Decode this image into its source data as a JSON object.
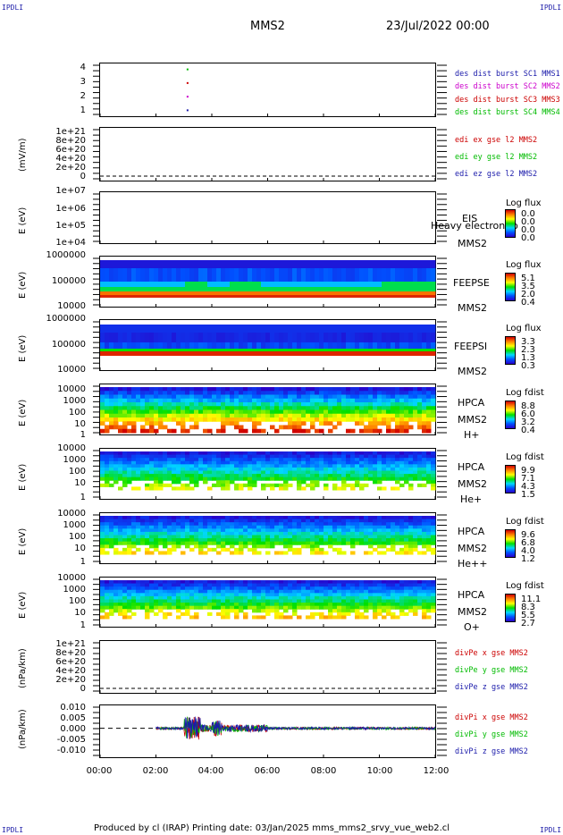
{
  "header": {
    "corner_left": "IPDLI",
    "corner_right": "IPDLI",
    "spacecraft": "MMS2",
    "datetime": "23/Jul/2022 00:00"
  },
  "footer": {
    "text": "Produced by cl (IRAP)   Printing date: 03/Jan/2025   mms_mms2_srvy_vue_web2.cl",
    "corner_left": "IPDLI",
    "corner_right": "IPDLI"
  },
  "xaxis": {
    "ticks": [
      "00:00",
      "02:00",
      "04:00",
      "06:00",
      "08:00",
      "10:00",
      "12:00"
    ],
    "range_hours": [
      0,
      12
    ]
  },
  "colors": {
    "blue": "#1a1aaa",
    "magenta": "#cc00cc",
    "red": "#cc0000",
    "green": "#00bb00"
  },
  "chart_data": [
    {
      "type": "scatter",
      "ylim": [
        0.5,
        4.5
      ],
      "yticks": [
        "4",
        "3",
        "2",
        "1"
      ],
      "series": [
        {
          "name": "des dist burst SC1 MMS1",
          "x": [
            3.1
          ],
          "y": [
            1
          ],
          "color": "#1a1aaa"
        },
        {
          "name": "des dist burst SC2 MMS2",
          "x": [
            3.1
          ],
          "y": [
            2
          ],
          "color": "#cc00cc"
        },
        {
          "name": "des dist burst SC3 MMS3",
          "x": [
            3.1
          ],
          "y": [
            3
          ],
          "color": "#cc0000"
        },
        {
          "name": "des dist burst SC4 MMS4",
          "x": [
            3.1
          ],
          "y": [
            4
          ],
          "color": "#00bb00"
        }
      ]
    },
    {
      "type": "line",
      "ylabel": "(mV/m)",
      "yticks": [
        "1e+21",
        "8e+20",
        "6e+20",
        "4e+20",
        "2e+20",
        "0"
      ],
      "series": [
        {
          "name": "edi ex gse l2 MMS2",
          "color": "#cc0000"
        },
        {
          "name": "edi ey gse l2 MMS2",
          "color": "#00bb00"
        },
        {
          "name": "edi ez gse l2 MMS2",
          "color": "#1a1aaa"
        }
      ]
    },
    {
      "type": "heatmap",
      "ylabel": "E (eV)",
      "yticks": [
        "1e+07",
        "1e+06",
        "1e+05",
        "1e+04"
      ],
      "labels": [
        "EIS",
        "Heavy electron to",
        "MMS2"
      ],
      "colorbar": {
        "title": "Log flux",
        "values": [
          "0.0",
          "0.0",
          "0.0",
          "0.0"
        ]
      }
    },
    {
      "type": "heatmap",
      "ylabel": "E (eV)",
      "yticks": [
        "1000000",
        "100000",
        "10000"
      ],
      "labels": [
        "FEEPSE",
        "MMS2"
      ],
      "colorbar": {
        "title": "Log flux",
        "values": [
          "5.1",
          "3.5",
          "2.0",
          "0.4"
        ]
      }
    },
    {
      "type": "heatmap",
      "ylabel": "E (eV)",
      "yticks": [
        "1000000",
        "100000",
        "10000"
      ],
      "labels": [
        "FEEPSI",
        "MMS2"
      ],
      "colorbar": {
        "title": "Log flux",
        "values": [
          "3.3",
          "2.3",
          "1.3",
          "0.3"
        ]
      }
    },
    {
      "type": "heatmap",
      "ylabel": "E (eV)",
      "yticks": [
        "10000",
        "1000",
        "100",
        "10",
        "1"
      ],
      "labels": [
        "HPCA",
        "MMS2",
        "H+"
      ],
      "colorbar": {
        "title": "Log fdist",
        "values": [
          "8.8",
          "6.0",
          "3.2",
          "0.4"
        ]
      }
    },
    {
      "type": "heatmap",
      "ylabel": "E (eV)",
      "yticks": [
        "10000",
        "1000",
        "100",
        "10",
        "1"
      ],
      "labels": [
        "HPCA",
        "MMS2",
        "He+"
      ],
      "colorbar": {
        "title": "Log fdist",
        "values": [
          "9.9",
          "7.1",
          "4.3",
          "1.5"
        ]
      }
    },
    {
      "type": "heatmap",
      "ylabel": "E (eV)",
      "yticks": [
        "10000",
        "1000",
        "100",
        "10",
        "1"
      ],
      "labels": [
        "HPCA",
        "MMS2",
        "He++"
      ],
      "colorbar": {
        "title": "Log fdist",
        "values": [
          "9.6",
          "6.8",
          "4.0",
          "1.2"
        ]
      }
    },
    {
      "type": "heatmap",
      "ylabel": "E (eV)",
      "yticks": [
        "10000",
        "1000",
        "100",
        "10",
        "1"
      ],
      "labels": [
        "HPCA",
        "MMS2",
        "O+"
      ],
      "colorbar": {
        "title": "Log fdist",
        "values": [
          "11.1",
          "8.3",
          "5.5",
          "2.7"
        ]
      }
    },
    {
      "type": "line",
      "ylabel": "(nPa/km)",
      "yticks": [
        "1e+21",
        "8e+20",
        "6e+20",
        "4e+20",
        "2e+20",
        "0"
      ],
      "series": [
        {
          "name": "divPe x gse MMS2",
          "color": "#cc0000"
        },
        {
          "name": "divPe y gse MMS2",
          "color": "#00bb00"
        },
        {
          "name": "divPe z gse MMS2",
          "color": "#1a1aaa"
        }
      ]
    },
    {
      "type": "line",
      "ylabel": "(nPa/km)",
      "ylim": [
        -0.015,
        0.012
      ],
      "yticks": [
        "0.010",
        "0.005",
        "0.000",
        "-0.005",
        "-0.010"
      ],
      "series": [
        {
          "name": "divPi x gse MMS2",
          "color": "#cc0000"
        },
        {
          "name": "divPi y gse MMS2",
          "color": "#00bb00"
        },
        {
          "name": "divPi z gse MMS2",
          "color": "#1a1aaa"
        }
      ]
    }
  ]
}
